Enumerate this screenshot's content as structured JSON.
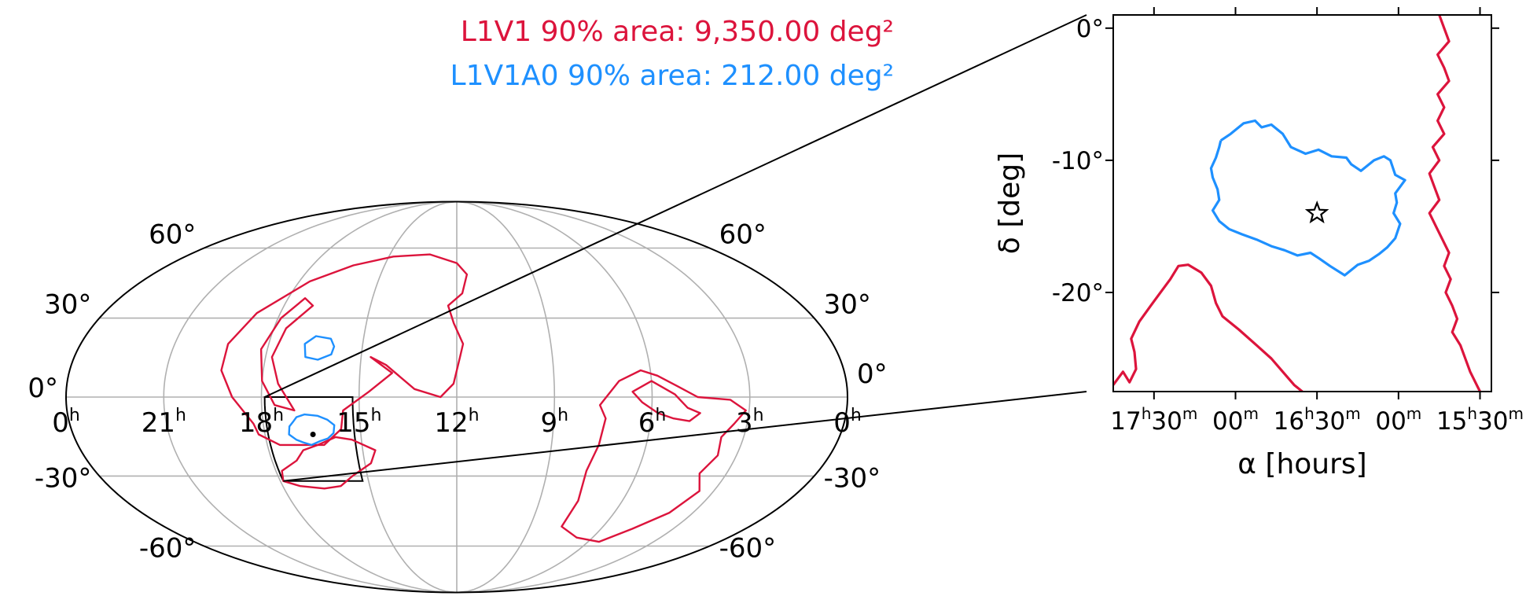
{
  "colors": {
    "l1v1": "#dc143c",
    "l1v1a0": "#1e90ff",
    "grid": "#b0b0b0",
    "frame": "#000000"
  },
  "legend": {
    "l1v1": "L1V1 90% area: 9,350.00 deg²",
    "l1v1a0": "L1V1A0 90% area: 212.00 deg²",
    "placement": "top-center"
  },
  "chart_data": [
    {
      "type": "sky-map",
      "projection": "mollweide",
      "grid": true,
      "ra_ticks": [
        {
          "h": "0",
          "ra": 24
        },
        {
          "h": "21",
          "ra": 21
        },
        {
          "h": "18",
          "ra": 18
        },
        {
          "h": "15",
          "ra": 15
        },
        {
          "h": "12",
          "ra": 12
        },
        {
          "h": "9",
          "ra": 9
        },
        {
          "h": "6",
          "ra": 6
        },
        {
          "h": "3",
          "ra": 3
        },
        {
          "h": "0",
          "ra": 0
        }
      ],
      "dec_ticks_left": [
        "60°",
        "30°",
        "0°",
        "-30°",
        "-60°"
      ],
      "dec_ticks_right": [
        "60°",
        "30°",
        "0°",
        "-30°",
        "-60°"
      ],
      "dec_values": [
        60,
        30,
        0,
        -30,
        -60
      ],
      "series": [
        {
          "name": "L1V1",
          "color": "#dc143c",
          "regions": [
            [
              [
                18.3,
                -10
              ],
              [
                18.9,
                0
              ],
              [
                19.3,
                10
              ],
              [
                19.3,
                20
              ],
              [
                18.8,
                32
              ],
              [
                17.6,
                45
              ],
              [
                16.3,
                52
              ],
              [
                14.8,
                56
              ],
              [
                13.2,
                57
              ],
              [
                12.0,
                53
              ],
              [
                11.6,
                48
              ],
              [
                11.8,
                40
              ],
              [
                12.3,
                35
              ],
              [
                12.1,
                28
              ],
              [
                11.8,
                20
              ],
              [
                11.9,
                15
              ],
              [
                12.1,
                5
              ],
              [
                12.5,
                0
              ],
              [
                13.3,
                3
              ],
              [
                14.2,
                12
              ],
              [
                14.7,
                15
              ],
              [
                14.0,
                9
              ],
              [
                14.7,
                2
              ],
              [
                15.5,
                -5
              ],
              [
                15.6,
                -12
              ],
              [
                16.2,
                -18
              ],
              [
                17.6,
                -18
              ],
              [
                18.2,
                -14
              ],
              [
                18.3,
                -10
              ]
            ],
            [
              [
                16.4,
                -18
              ],
              [
                16.9,
                -20
              ],
              [
                17.2,
                -24
              ],
              [
                17.8,
                -28
              ],
              [
                17.9,
                -32
              ],
              [
                17.4,
                -34
              ],
              [
                16.6,
                -35
              ],
              [
                16.0,
                -34
              ],
              [
                15.5,
                -30
              ],
              [
                14.8,
                -25
              ],
              [
                14.6,
                -20
              ],
              [
                15.3,
                -16
              ],
              [
                15.8,
                -15
              ],
              [
                16.4,
                -18
              ]
            ],
            [
              [
                17.0,
                -5
              ],
              [
                17.5,
                5
              ],
              [
                17.8,
                15
              ],
              [
                17.6,
                26
              ],
              [
                17.0,
                35
              ],
              [
                17.4,
                38
              ],
              [
                17.9,
                30
              ],
              [
                18.2,
                18
              ],
              [
                18.0,
                6
              ],
              [
                17.6,
                -3
              ],
              [
                17.0,
                -5
              ]
            ],
            [
              [
                7.0,
                6
              ],
              [
                6.3,
                10
              ],
              [
                5.8,
                8
              ],
              [
                5.2,
                4
              ],
              [
                4.6,
                0
              ],
              [
                3.6,
                -1
              ],
              [
                3.1,
                -5
              ],
              [
                3.4,
                -10
              ],
              [
                3.7,
                -15
              ],
              [
                3.6,
                -22
              ],
              [
                3.9,
                -29
              ],
              [
                3.5,
                -36
              ],
              [
                3.9,
                -45
              ],
              [
                4.7,
                -52
              ],
              [
                5.5,
                -58
              ],
              [
                6.7,
                -56
              ],
              [
                7.7,
                -51
              ],
              [
                7.6,
                -40
              ],
              [
                7.7,
                -28
              ],
              [
                7.5,
                -18
              ],
              [
                7.4,
                -8
              ],
              [
                7.6,
                -3
              ],
              [
                7.0,
                6
              ]
            ],
            [
              [
                6.0,
                6
              ],
              [
                5.3,
                1
              ],
              [
                4.9,
                -4
              ],
              [
                4.5,
                -6
              ],
              [
                4.8,
                -9
              ],
              [
                5.3,
                -8
              ],
              [
                5.8,
                -6
              ],
              [
                6.3,
                -2
              ],
              [
                6.6,
                2
              ],
              [
                6.0,
                6
              ]
            ]
          ]
        },
        {
          "name": "L1V1A0",
          "color": "#1e90ff",
          "regions": [
            [
              [
                16.7,
                -6.5
              ],
              [
                16.3,
                -7
              ],
              [
                16.0,
                -8.5
              ],
              [
                15.8,
                -10.5
              ],
              [
                15.85,
                -13.5
              ],
              [
                16.05,
                -15.5
              ],
              [
                16.3,
                -16.5
              ],
              [
                16.6,
                -18
              ],
              [
                16.85,
                -17
              ],
              [
                17.05,
                -16
              ],
              [
                17.25,
                -14
              ],
              [
                17.2,
                -11
              ],
              [
                17.05,
                -9
              ],
              [
                16.95,
                -7.5
              ],
              [
                16.7,
                -6.5
              ]
            ],
            [
              [
                16.05,
                22
              ],
              [
                16.55,
                23
              ],
              [
                16.85,
                20
              ],
              [
                16.75,
                15
              ],
              [
                16.35,
                14
              ],
              [
                15.95,
                16
              ],
              [
                15.9,
                19
              ],
              [
                16.05,
                22
              ]
            ]
          ]
        }
      ],
      "zoom_box": {
        "ra_min": 15.2,
        "ra_max": 17.9,
        "dec_min": -32,
        "dec_max": 0
      }
    },
    {
      "type": "line",
      "title": "",
      "xlabel": "α [hours]",
      "ylabel": "δ [deg]",
      "xlim": [
        17.75,
        15.43
      ],
      "ylim": [
        -27.5,
        1.0
      ],
      "grid": false,
      "x_ticks": [
        {
          "value": 17.5,
          "h": "17",
          "m": "30"
        },
        {
          "value": 17.0,
          "h": "",
          "m": "00"
        },
        {
          "value": 16.5,
          "h": "16",
          "m": "30"
        },
        {
          "value": 16.0,
          "h": "",
          "m": "00"
        },
        {
          "value": 15.5,
          "h": "15",
          "m": "30"
        }
      ],
      "y_ticks": [
        {
          "value": 0,
          "label": "0°"
        },
        {
          "value": -10,
          "label": "-10°"
        },
        {
          "value": -20,
          "label": "-20°"
        }
      ],
      "series": [
        {
          "name": "L1V1",
          "color": "#dc143c",
          "paths": [
            [
              [
                15.75,
                1.0
              ],
              [
                15.72,
                0
              ],
              [
                15.69,
                -1
              ],
              [
                15.76,
                -2
              ],
              [
                15.72,
                -3
              ],
              [
                15.69,
                -4
              ],
              [
                15.76,
                -5
              ],
              [
                15.72,
                -6
              ],
              [
                15.76,
                -7
              ],
              [
                15.72,
                -8
              ],
              [
                15.79,
                -9
              ],
              [
                15.75,
                -10
              ],
              [
                15.81,
                -11
              ],
              [
                15.78,
                -12
              ],
              [
                15.75,
                -13
              ],
              [
                15.81,
                -14
              ],
              [
                15.77,
                -15
              ],
              [
                15.73,
                -16
              ],
              [
                15.69,
                -17
              ],
              [
                15.72,
                -18
              ],
              [
                15.68,
                -19
              ],
              [
                15.71,
                -20
              ],
              [
                15.67,
                -21
              ],
              [
                15.64,
                -22
              ],
              [
                15.67,
                -23
              ],
              [
                15.62,
                -24
              ],
              [
                15.59,
                -25
              ],
              [
                15.56,
                -26
              ],
              [
                15.52,
                -27
              ],
              [
                15.5,
                -27.5
              ]
            ],
            [
              [
                17.75,
                -27.0
              ],
              [
                17.69,
                -26.0
              ],
              [
                17.65,
                -26.8
              ],
              [
                17.61,
                -25.8
              ],
              [
                17.62,
                -24.5
              ],
              [
                17.64,
                -23.5
              ],
              [
                17.59,
                -22.2
              ],
              [
                17.52,
                -21.0
              ],
              [
                17.46,
                -20.0
              ],
              [
                17.4,
                -19.0
              ],
              [
                17.35,
                -18.0
              ],
              [
                17.29,
                -17.9
              ],
              [
                17.21,
                -18.5
              ],
              [
                17.15,
                -19.5
              ],
              [
                17.12,
                -20.8
              ],
              [
                17.08,
                -21.8
              ],
              [
                16.98,
                -22.8
              ],
              [
                16.87,
                -24.0
              ],
              [
                16.78,
                -25.0
              ],
              [
                16.71,
                -26.0
              ],
              [
                16.64,
                -27.0
              ],
              [
                16.59,
                -27.5
              ]
            ]
          ]
        },
        {
          "name": "L1V1A0",
          "color": "#1e90ff",
          "paths": [
            [
              [
                17.09,
                -8.5
              ],
              [
                17.03,
                -8.0
              ],
              [
                16.95,
                -7.2
              ],
              [
                16.88,
                -7.0
              ],
              [
                16.84,
                -7.5
              ],
              [
                16.78,
                -7.3
              ],
              [
                16.71,
                -8.0
              ],
              [
                16.66,
                -9.0
              ],
              [
                16.57,
                -9.5
              ],
              [
                16.49,
                -9.2
              ],
              [
                16.41,
                -9.7
              ],
              [
                16.32,
                -9.8
              ],
              [
                16.29,
                -10.3
              ],
              [
                16.23,
                -10.8
              ],
              [
                16.15,
                -10.0
              ],
              [
                16.09,
                -9.7
              ],
              [
                16.05,
                -10.0
              ],
              [
                16.02,
                -11.1
              ],
              [
                15.96,
                -11.5
              ],
              [
                16.02,
                -12.5
              ],
              [
                16.01,
                -13.2
              ],
              [
                16.03,
                -14.0
              ],
              [
                15.99,
                -14.8
              ],
              [
                16.02,
                -15.9
              ],
              [
                16.07,
                -16.6
              ],
              [
                16.12,
                -17.1
              ],
              [
                16.18,
                -17.6
              ],
              [
                16.25,
                -17.9
              ],
              [
                16.33,
                -18.7
              ],
              [
                16.42,
                -18.0
              ],
              [
                16.49,
                -17.4
              ],
              [
                16.54,
                -17.0
              ],
              [
                16.62,
                -17.2
              ],
              [
                16.7,
                -16.8
              ],
              [
                16.78,
                -16.5
              ],
              [
                16.87,
                -16.0
              ],
              [
                16.96,
                -15.6
              ],
              [
                17.04,
                -15.2
              ],
              [
                17.1,
                -14.6
              ],
              [
                17.14,
                -13.8
              ],
              [
                17.1,
                -13.0
              ],
              [
                17.11,
                -12.2
              ],
              [
                17.14,
                -11.3
              ],
              [
                17.15,
                -10.6
              ],
              [
                17.12,
                -9.8
              ],
              [
                17.1,
                -9.0
              ],
              [
                17.09,
                -8.5
              ]
            ]
          ]
        }
      ],
      "marker": {
        "type": "star",
        "ra": 16.5,
        "dec": -14.0
      }
    }
  ]
}
